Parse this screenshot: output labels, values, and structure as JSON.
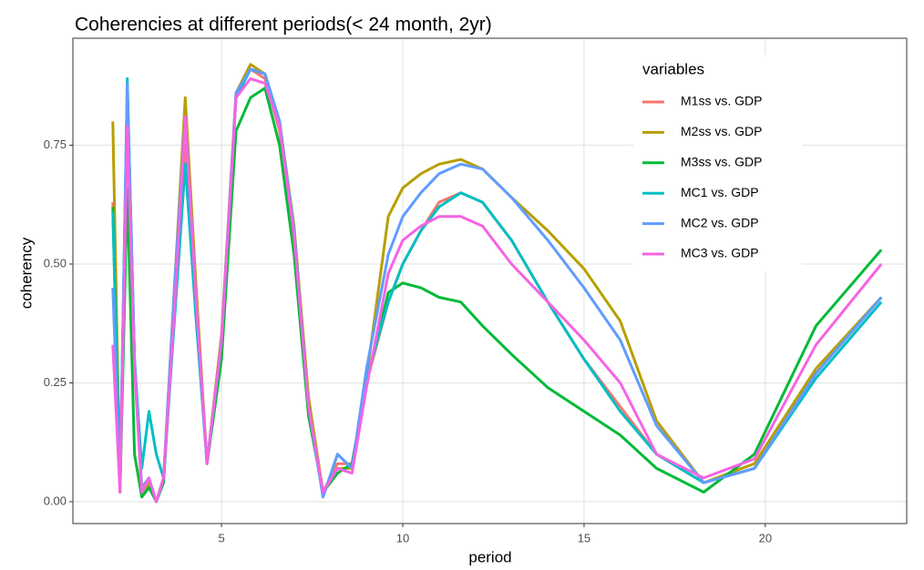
{
  "chart_data": {
    "type": "line",
    "title": "Coherencies at different periods(< 24 month, 2yr)",
    "x_label": "period",
    "y_label": "coherency",
    "legend_title": "variables",
    "legend_position": "top-right",
    "grid": true,
    "xlim": [
      0.9,
      23.9
    ],
    "ylim": [
      -0.046,
      0.975
    ],
    "xticks": [
      5,
      10,
      15,
      20
    ],
    "yticks": [
      {
        "value": 0,
        "label": "0.00"
      },
      {
        "value": 0.25,
        "label": "0.25"
      },
      {
        "value": 0.5,
        "label": "0.50"
      },
      {
        "value": 0.75,
        "label": "0.75"
      }
    ],
    "x": [
      2.0,
      2.2,
      2.4,
      2.6,
      2.8,
      3.0,
      3.2,
      3.4,
      3.7,
      4.0,
      4.3,
      4.6,
      5.0,
      5.4,
      5.8,
      6.2,
      6.6,
      7.0,
      7.4,
      7.8,
      8.2,
      8.6,
      9.0,
      9.6,
      10.0,
      10.5,
      11.0,
      11.6,
      12.2,
      13.0,
      14.0,
      15.0,
      16.0,
      17.0,
      18.3,
      19.7,
      21.4,
      23.2
    ],
    "series": [
      {
        "name": "M1ss vs. GDP",
        "color": "#F8766D",
        "values": [
          0.63,
          0.03,
          0.85,
          0.3,
          0.02,
          0.04,
          0.0,
          0.05,
          0.4,
          0.75,
          0.4,
          0.08,
          0.35,
          0.85,
          0.91,
          0.89,
          0.78,
          0.55,
          0.2,
          0.02,
          0.08,
          0.08,
          0.25,
          0.42,
          0.5,
          0.57,
          0.63,
          0.65,
          0.63,
          0.55,
          0.42,
          0.3,
          0.2,
          0.1,
          0.04,
          0.07,
          0.27,
          0.43
        ]
      },
      {
        "name": "M2ss vs. GDP",
        "color": "#B79F00",
        "values": [
          0.8,
          0.03,
          0.86,
          0.3,
          0.02,
          0.04,
          0.0,
          0.05,
          0.45,
          0.85,
          0.45,
          0.08,
          0.35,
          0.86,
          0.92,
          0.9,
          0.8,
          0.58,
          0.22,
          0.02,
          0.07,
          0.07,
          0.26,
          0.6,
          0.66,
          0.69,
          0.71,
          0.72,
          0.7,
          0.64,
          0.57,
          0.49,
          0.38,
          0.17,
          0.04,
          0.08,
          0.28,
          0.43
        ]
      },
      {
        "name": "M3ss vs. GDP",
        "color": "#00BA38",
        "values": [
          0.62,
          0.02,
          0.66,
          0.1,
          0.01,
          0.03,
          0.0,
          0.04,
          0.4,
          0.71,
          0.4,
          0.08,
          0.3,
          0.78,
          0.85,
          0.87,
          0.75,
          0.52,
          0.18,
          0.02,
          0.06,
          0.08,
          0.25,
          0.44,
          0.46,
          0.45,
          0.43,
          0.42,
          0.37,
          0.31,
          0.24,
          0.19,
          0.14,
          0.07,
          0.02,
          0.1,
          0.37,
          0.53
        ]
      },
      {
        "name": "MC1 vs. GDP",
        "color": "#00BFC4",
        "values": [
          0.61,
          0.03,
          0.89,
          0.3,
          0.07,
          0.19,
          0.1,
          0.05,
          0.38,
          0.71,
          0.38,
          0.08,
          0.34,
          0.85,
          0.91,
          0.9,
          0.8,
          0.57,
          0.2,
          0.01,
          0.1,
          0.07,
          0.26,
          0.42,
          0.5,
          0.57,
          0.62,
          0.65,
          0.63,
          0.55,
          0.42,
          0.3,
          0.19,
          0.1,
          0.04,
          0.07,
          0.26,
          0.42
        ]
      },
      {
        "name": "MC2 vs. GDP",
        "color": "#619CFF",
        "values": [
          0.45,
          0.03,
          0.88,
          0.3,
          0.03,
          0.05,
          0.0,
          0.05,
          0.45,
          0.81,
          0.42,
          0.08,
          0.34,
          0.86,
          0.91,
          0.9,
          0.8,
          0.57,
          0.2,
          0.01,
          0.1,
          0.07,
          0.28,
          0.52,
          0.6,
          0.65,
          0.69,
          0.71,
          0.7,
          0.64,
          0.55,
          0.45,
          0.34,
          0.16,
          0.04,
          0.07,
          0.27,
          0.43
        ]
      },
      {
        "name": "MC3 vs. GDP",
        "color": "#F564E3",
        "values": [
          0.33,
          0.02,
          0.79,
          0.28,
          0.02,
          0.05,
          0.0,
          0.05,
          0.4,
          0.81,
          0.42,
          0.08,
          0.34,
          0.85,
          0.89,
          0.88,
          0.79,
          0.56,
          0.2,
          0.02,
          0.07,
          0.06,
          0.24,
          0.48,
          0.55,
          0.58,
          0.6,
          0.6,
          0.58,
          0.5,
          0.42,
          0.34,
          0.25,
          0.1,
          0.05,
          0.09,
          0.33,
          0.5
        ]
      }
    ]
  }
}
